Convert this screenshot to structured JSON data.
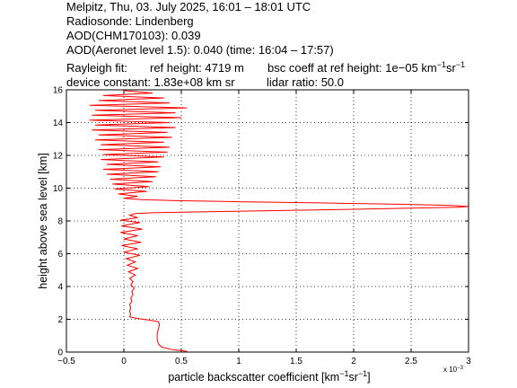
{
  "header": {
    "line1": "Melpitz, Thu, 03. July 2025, 16:01 – 18:01 UTC",
    "line2": "Radiosonde: Lindenberg",
    "line3": "AOD(CHM170103): 0.039",
    "line4": "AOD(Aeronet level 1.5): 0.040   (time: 16:04 – 17:57)",
    "rayleigh_label": "Rayleigh fit:",
    "ref_height": "ref height: 4719 m",
    "bsc_coeff_prefix": "bsc coeff at ref height: 1e−05 km",
    "bsc_sup1": "−1",
    "bsc_mid": "sr",
    "bsc_sup2": "−1",
    "device_constant": "device constant: 1.83e+08 km sr",
    "lidar_ratio": "lidar ratio: 50.0"
  },
  "chart_data": {
    "type": "line",
    "xlabel": "particle backscatter coefficient [km⁻¹sr⁻¹]",
    "xlabel_parts": {
      "a": "particle backscatter coefficient [km",
      "sup1": "−1",
      "b": "sr",
      "sup2": "−1",
      "c": "]"
    },
    "ylabel": "height above sea level [km]",
    "x_multiplier": "x 10",
    "x_multiplier_exp": "−3",
    "xlim": [
      -0.5,
      3.0
    ],
    "ylim": [
      0,
      16
    ],
    "xticks": [
      -0.5,
      0,
      0.5,
      1,
      1.5,
      2,
      2.5,
      3
    ],
    "xtick_labels": [
      "−0.5",
      "0",
      "0.5",
      "1",
      "1.5",
      "2",
      "2.5",
      "3"
    ],
    "yticks": [
      0,
      2,
      4,
      6,
      8,
      10,
      12,
      14,
      16
    ],
    "ytick_labels": [
      "0",
      "2",
      "4",
      "6",
      "8",
      "10",
      "12",
      "14",
      "16"
    ],
    "grid": true,
    "grid_style": "dotted",
    "series": [
      {
        "color": "#ff0000",
        "points": [
          [
            0.55,
            0.05
          ],
          [
            0.42,
            0.15
          ],
          [
            0.33,
            0.3
          ],
          [
            0.3,
            0.5
          ],
          [
            0.29,
            0.8
          ],
          [
            0.29,
            1.1
          ],
          [
            0.3,
            1.4
          ],
          [
            0.31,
            1.7
          ],
          [
            0.3,
            1.85
          ],
          [
            0.22,
            1.95
          ],
          [
            0.12,
            2.05
          ],
          [
            0.05,
            2.15
          ],
          [
            0.06,
            2.3
          ],
          [
            0.05,
            2.5
          ],
          [
            0.06,
            2.7
          ],
          [
            0.05,
            2.9
          ],
          [
            0.07,
            3.1
          ],
          [
            0.06,
            3.3
          ],
          [
            0.08,
            3.5
          ],
          [
            0.07,
            3.7
          ],
          [
            0.09,
            3.9
          ],
          [
            0.06,
            4.1
          ],
          [
            0.08,
            4.3
          ],
          [
            0.05,
            4.5
          ],
          [
            0.1,
            4.7
          ],
          [
            0.04,
            4.9
          ],
          [
            0.12,
            5.1
          ],
          [
            0.03,
            5.3
          ],
          [
            0.1,
            5.5
          ],
          [
            0.02,
            5.7
          ],
          [
            0.14,
            5.9
          ],
          [
            0.0,
            6.1
          ],
          [
            0.12,
            6.3
          ],
          [
            -0.02,
            6.5
          ],
          [
            0.15,
            6.7
          ],
          [
            0.0,
            6.9
          ],
          [
            0.12,
            7.1
          ],
          [
            -0.03,
            7.3
          ],
          [
            0.16,
            7.5
          ],
          [
            -0.02,
            7.7
          ],
          [
            0.14,
            7.9
          ],
          [
            -0.03,
            8.05
          ],
          [
            0.12,
            8.2
          ],
          [
            0.05,
            8.35
          ],
          [
            0.1,
            8.45
          ],
          [
            0.25,
            8.5
          ],
          [
            0.6,
            8.55
          ],
          [
            1.2,
            8.62
          ],
          [
            1.9,
            8.7
          ],
          [
            2.5,
            8.78
          ],
          [
            2.9,
            8.84
          ],
          [
            3.0,
            8.88
          ],
          [
            2.85,
            8.95
          ],
          [
            2.4,
            9.02
          ],
          [
            1.7,
            9.1
          ],
          [
            1.0,
            9.17
          ],
          [
            0.45,
            9.24
          ],
          [
            0.15,
            9.3
          ],
          [
            0.0,
            9.38
          ],
          [
            0.12,
            9.5
          ],
          [
            -0.05,
            9.65
          ],
          [
            0.2,
            9.8
          ],
          [
            -0.08,
            9.95
          ],
          [
            0.22,
            10.1
          ],
          [
            -0.1,
            10.25
          ],
          [
            0.25,
            10.4
          ],
          [
            -0.12,
            10.55
          ],
          [
            0.28,
            10.7
          ],
          [
            -0.15,
            10.85
          ],
          [
            0.3,
            11.0
          ],
          [
            -0.18,
            11.15
          ],
          [
            0.32,
            11.3
          ],
          [
            -0.15,
            11.45
          ],
          [
            0.3,
            11.6
          ],
          [
            -0.2,
            11.75
          ],
          [
            0.35,
            11.9
          ],
          [
            -0.18,
            12.05
          ],
          [
            0.38,
            12.2
          ],
          [
            -0.22,
            12.35
          ],
          [
            0.4,
            12.5
          ],
          [
            -0.2,
            12.65
          ],
          [
            0.35,
            12.8
          ],
          [
            -0.25,
            12.95
          ],
          [
            0.42,
            13.1
          ],
          [
            -0.22,
            13.25
          ],
          [
            0.38,
            13.4
          ],
          [
            -0.28,
            13.55
          ],
          [
            0.45,
            13.7
          ],
          [
            -0.25,
            13.85
          ],
          [
            0.4,
            14.0
          ],
          [
            -0.3,
            14.15
          ],
          [
            0.5,
            14.3
          ],
          [
            -0.28,
            14.45
          ],
          [
            0.45,
            14.6
          ],
          [
            -0.25,
            14.75
          ],
          [
            0.55,
            14.9
          ],
          [
            -0.3,
            15.05
          ],
          [
            0.4,
            15.2
          ],
          [
            -0.22,
            15.35
          ],
          [
            0.35,
            15.5
          ],
          [
            -0.18,
            15.65
          ],
          [
            0.25,
            15.8
          ],
          [
            0.0,
            15.95
          ]
        ]
      }
    ]
  }
}
